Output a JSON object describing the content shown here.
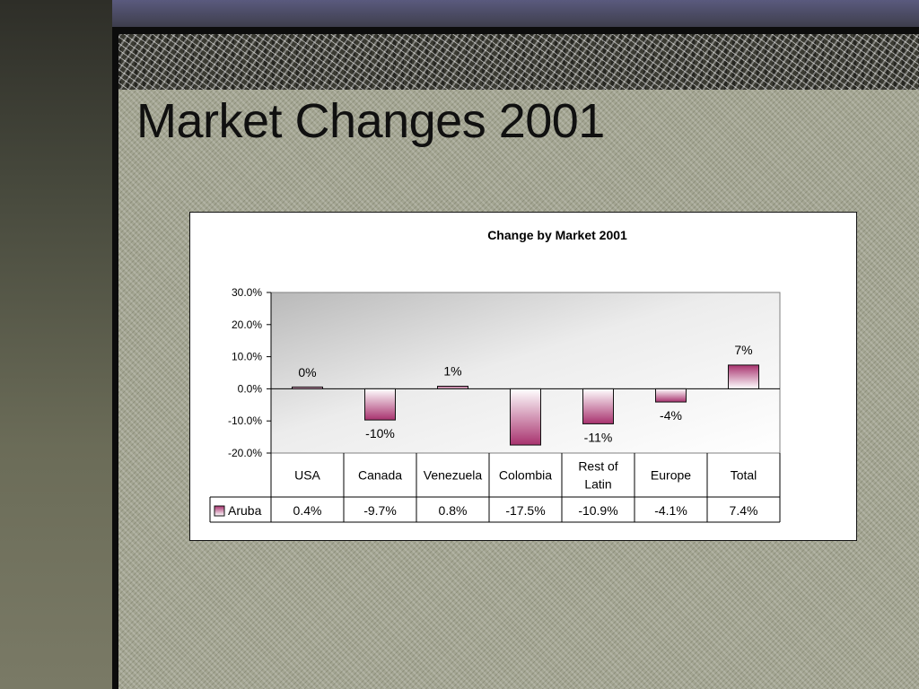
{
  "slide": {
    "title": "Market Changes 2001"
  },
  "chart_data": {
    "type": "bar",
    "title": "Change by Market 2001",
    "categories": [
      "USA",
      "Canada",
      "Venezuela",
      "Colombia",
      "Rest of Latin",
      "Europe",
      "Total"
    ],
    "category_lines": [
      [
        "USA"
      ],
      [
        "Canada"
      ],
      [
        "Venezuela"
      ],
      [
        "Colombia"
      ],
      [
        "Rest of",
        "Latin"
      ],
      [
        "Europe"
      ],
      [
        "Total"
      ]
    ],
    "series": [
      {
        "name": "Aruba",
        "values": [
          0.4,
          -9.7,
          0.8,
          -17.5,
          -10.9,
          -4.1,
          7.4
        ],
        "table_labels": [
          "0.4%",
          "-9.7%",
          "0.8%",
          "-17.5%",
          "-10.9%",
          "-4.1%",
          "7.4%"
        ],
        "data_labels": [
          "0%",
          "-10%",
          "1%",
          "",
          "-11%",
          "-4%",
          "7%"
        ]
      }
    ],
    "yticks": [
      30,
      20,
      10,
      0,
      -10,
      -20
    ],
    "ytick_labels": [
      "30.0%",
      "20.0%",
      "10.0%",
      "0.0%",
      "-10.0%",
      "-20.0%"
    ],
    "ylim": [
      -20,
      30
    ],
    "xlabel": "",
    "ylabel": "",
    "legend": "data-table",
    "grid": false,
    "colors": {
      "bar_top": "#a8326e",
      "bar_bottom": "#ffffff",
      "bar_stroke": "#111111"
    }
  }
}
